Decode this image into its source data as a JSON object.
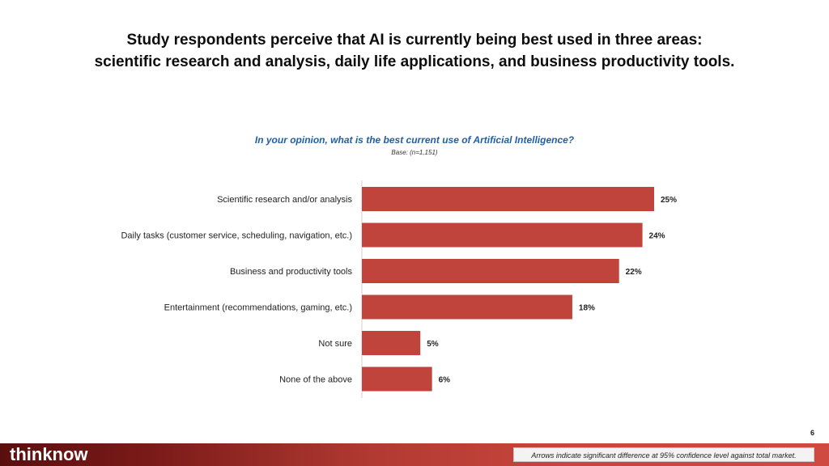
{
  "slide": {
    "headline_line1": "Study respondents perceive that AI is currently being best used in three areas:",
    "headline_line2": "scientific research and analysis, daily life applications, and business productivity tools.",
    "page_number": "6"
  },
  "footer": {
    "logo": "thinknow",
    "note": "Arrows indicate significant difference at 95% confidence level against total market."
  },
  "colors": {
    "bar": "#c0443c",
    "question": "#1f5fa8"
  },
  "chart_data": {
    "type": "bar",
    "orientation": "horizontal",
    "title": "In your opinion, what is the best current use of Artificial Intelligence?",
    "subtitle": "Base: (n=1,151)",
    "categories": [
      "Scientific research and/or analysis",
      "Daily tasks (customer service, scheduling, navigation, etc.)",
      "Business and productivity tools",
      "Entertainment (recommendations, gaming, etc.)",
      "Not sure",
      "None of the above"
    ],
    "values": [
      25,
      24,
      22,
      18,
      5,
      6
    ],
    "value_labels": [
      "25%",
      "24%",
      "22%",
      "18%",
      "5%",
      "6%"
    ],
    "units": "%",
    "xlim": [
      0,
      25
    ],
    "grid": false
  }
}
